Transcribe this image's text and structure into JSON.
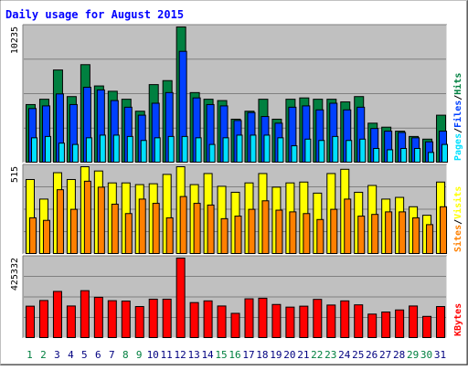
{
  "chart_data": {
    "type": "bar",
    "title": "Daily usage for August 2015",
    "categories": [
      "1",
      "2",
      "3",
      "4",
      "5",
      "6",
      "7",
      "8",
      "9",
      "10",
      "11",
      "12",
      "13",
      "14",
      "15",
      "16",
      "17",
      "18",
      "19",
      "20",
      "21",
      "22",
      "23",
      "24",
      "25",
      "26",
      "27",
      "28",
      "29",
      "30",
      "31"
    ],
    "weekend_days": [
      "1",
      "2",
      "8",
      "9",
      "15",
      "16",
      "22",
      "23",
      "29",
      "30"
    ],
    "grid": true,
    "panels": [
      {
        "id": "hits_files_pages",
        "max_label": "10235",
        "ylim": [
          0,
          10235
        ],
        "legend": [
          "Pages",
          "Files",
          "Hits"
        ],
        "series": [
          {
            "name": "Hits",
            "color": "#008040",
            "values": [
              4400,
              4800,
              7000,
              5000,
              7400,
              5800,
              5400,
              4800,
              3900,
              5900,
              6200,
              10235,
              5300,
              4800,
              4700,
              3300,
              3900,
              4800,
              3300,
              4800,
              4900,
              4800,
              4800,
              4600,
              5000,
              3000,
              2700,
              2400,
              2000,
              1800,
              3600
            ]
          },
          {
            "name": "Files",
            "color": "#0040ff",
            "values": [
              4100,
              4300,
              5200,
              4400,
              5700,
              5500,
              4700,
              4200,
              3600,
              4500,
              5300,
              8400,
              4900,
              4400,
              4300,
              3200,
              3800,
              3500,
              3000,
              4200,
              4300,
              4000,
              4500,
              4000,
              4200,
              2600,
              2400,
              2300,
              1900,
              1600,
              2400
            ]
          },
          {
            "name": "Pages",
            "color": "#00e0ff",
            "values": [
              1900,
              2000,
              1500,
              1400,
              1900,
              2100,
              2100,
              2000,
              1700,
              1900,
              2000,
              2000,
              1900,
              1400,
              1900,
              2100,
              2100,
              2100,
              1900,
              1300,
              1800,
              1700,
              2000,
              1700,
              1800,
              1100,
              1000,
              1100,
              1100,
              800,
              1400
            ]
          }
        ]
      },
      {
        "id": "visits_sites",
        "max_label": "515",
        "ylim": [
          0,
          515
        ],
        "legend": [
          "Sites",
          "Visits"
        ],
        "series": [
          {
            "name": "Visits",
            "color": "#ffff00",
            "values": [
              440,
              325,
              480,
              440,
              515,
              490,
              420,
              420,
              410,
              415,
              470,
              515,
              410,
              475,
              400,
              365,
              420,
              475,
              395,
              420,
              425,
              360,
              475,
              500,
              365,
              405,
              325,
              335,
              280,
              230,
              425
            ]
          },
          {
            "name": "Sites",
            "color": "#ff8000",
            "values": [
              215,
              200,
              380,
              265,
              430,
              395,
              295,
              240,
              325,
              300,
              215,
              340,
              300,
              290,
              210,
              225,
              265,
              315,
              260,
              250,
              240,
              205,
              265,
              325,
              225,
              235,
              250,
              250,
              215,
              175,
              280
            ]
          }
        ]
      },
      {
        "id": "kbytes",
        "max_label": "425332",
        "ylim": [
          0,
          425332
        ],
        "legend": [
          "KBytes"
        ],
        "series": [
          {
            "name": "KBytes",
            "color": "#ff0000",
            "values": [
              171000,
              201000,
              249000,
              172000,
              253000,
              218000,
              200000,
              198000,
              169000,
              208000,
              208000,
              425332,
              190000,
              199000,
              172000,
              133000,
              210000,
              213000,
              180000,
              166000,
              171000,
              207000,
              177000,
              199000,
              178000,
              129000,
              140000,
              151000,
              172000,
              117000,
              169000
            ]
          }
        ]
      }
    ]
  },
  "colors": {
    "background": "#ffffff",
    "panel_bg": "#c0c0c0",
    "title": "#0000ff",
    "weekday_label": "#000080",
    "weekend_label": "#008040",
    "label_dark": "#000000"
  }
}
